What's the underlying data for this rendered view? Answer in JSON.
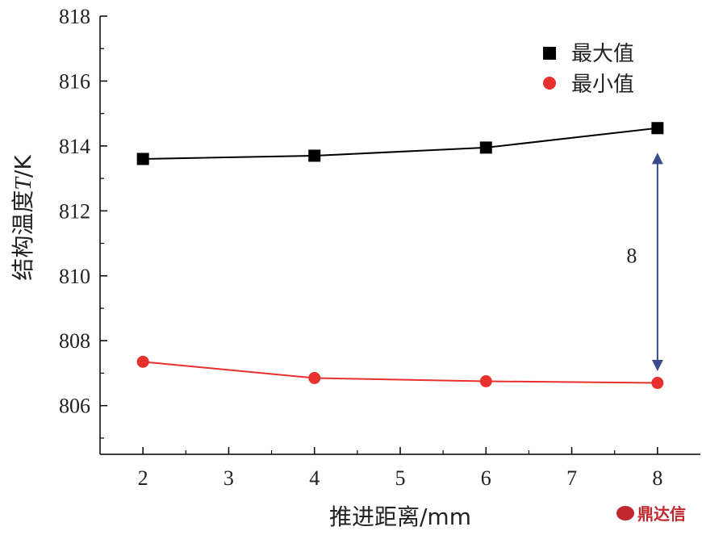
{
  "chart_data": {
    "type": "line",
    "x": [
      2,
      4,
      6,
      8
    ],
    "series": [
      {
        "name": "最大值",
        "values": [
          813.6,
          813.7,
          813.95,
          814.55
        ],
        "color": "#000000",
        "marker": "square"
      },
      {
        "name": "最小值",
        "values": [
          807.35,
          806.85,
          806.75,
          806.7
        ],
        "color": "#e8312e",
        "marker": "circle"
      }
    ],
    "xlabel": "推进距离/mm",
    "ylabel_prefix": "结构温度",
    "ylabel_italic": "T",
    "ylabel_suffix": "/K",
    "xlim": [
      1.5,
      8.5
    ],
    "ylim": [
      804.5,
      818
    ],
    "x_ticks": [
      2,
      3,
      4,
      5,
      6,
      7,
      8
    ],
    "y_ticks": [
      806,
      808,
      810,
      812,
      814,
      816,
      818
    ],
    "legend_position": "top-right",
    "grid": false,
    "annotation": {
      "text": "8",
      "x": 8,
      "from": 814.55,
      "to": 806.7,
      "color": "#3a4a8c"
    }
  },
  "watermark": {
    "text": "鼎达信"
  }
}
